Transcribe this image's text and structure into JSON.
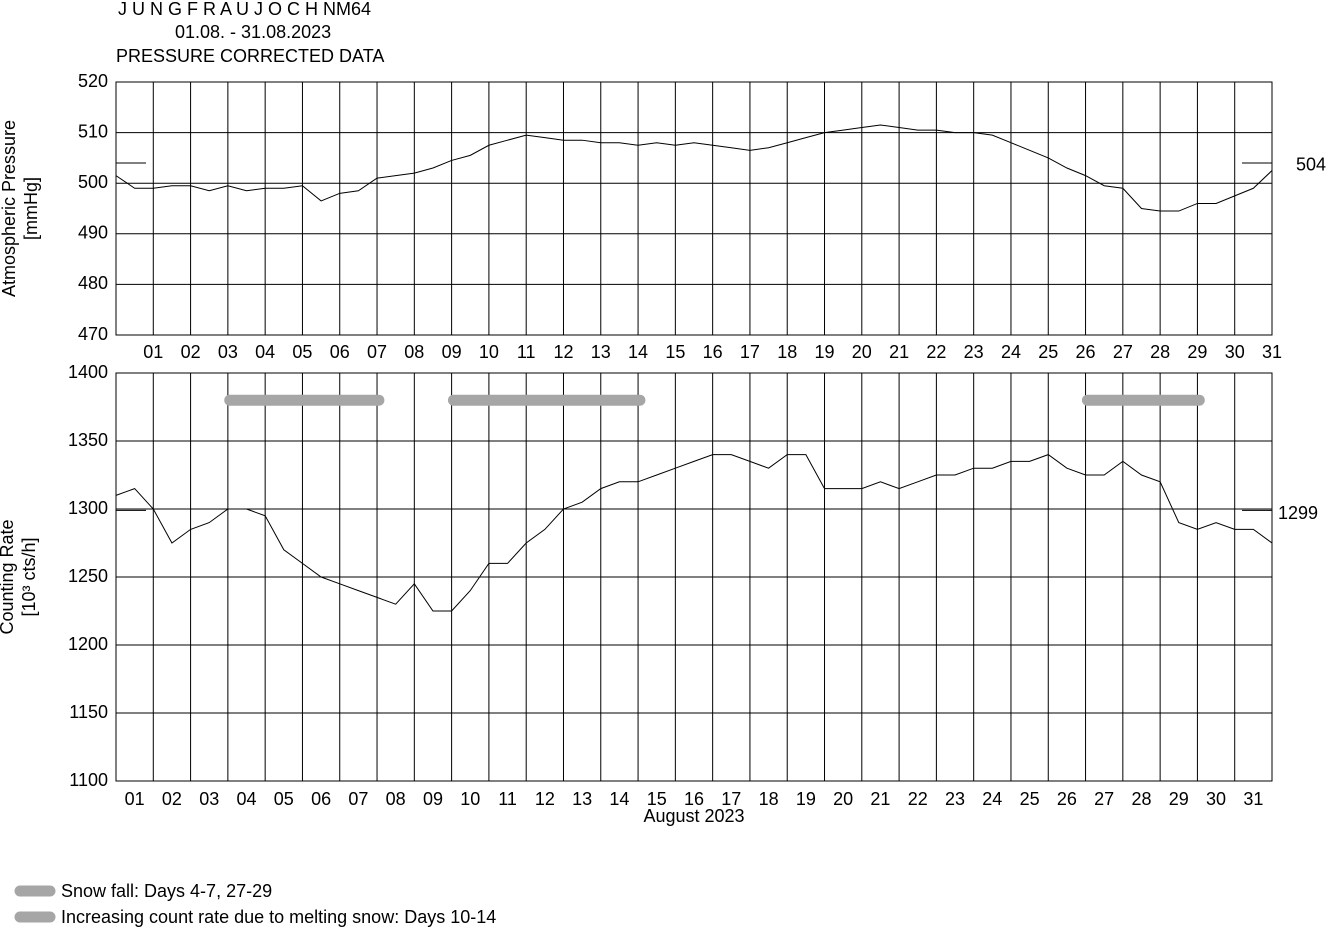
{
  "chart_data": [
    {
      "type": "line",
      "title": "J U N G F R A U J O C H  NM64",
      "subtitle": [
        "01.08. - 31.08.2023",
        "PRESSURE CORRECTED DATA"
      ],
      "ylabel": [
        "Atmospheric Pressure",
        "[mmHg]"
      ],
      "xlim": [
        0,
        31
      ],
      "ylim": [
        470,
        520
      ],
      "yticks": [
        470,
        480,
        490,
        500,
        510,
        520
      ],
      "xticks": [
        {
          "value": 1,
          "label": "01"
        },
        {
          "value": 2,
          "label": "02"
        },
        {
          "value": 3,
          "label": "03"
        },
        {
          "value": 4,
          "label": "04"
        },
        {
          "value": 5,
          "label": "05"
        },
        {
          "value": 6,
          "label": "06"
        },
        {
          "value": 7,
          "label": "07"
        },
        {
          "value": 8,
          "label": "08"
        },
        {
          "value": 9,
          "label": "09"
        },
        10,
        11,
        12,
        13,
        14,
        15,
        16,
        17,
        18,
        19,
        20,
        21,
        22,
        23,
        24,
        25,
        26,
        27,
        28,
        29,
        30,
        31
      ],
      "xgrid": [
        1,
        2,
        3,
        4,
        5,
        6,
        7,
        8,
        9,
        10,
        11,
        12,
        13,
        14,
        15,
        16,
        17,
        18,
        19,
        20,
        21,
        22,
        23,
        24,
        25,
        26,
        27,
        28,
        29,
        30
      ],
      "grid": true,
      "reference": 504,
      "series": [
        {
          "color": "#000000",
          "x": [
            0,
            0.5,
            1,
            1.5,
            2,
            2.5,
            3,
            3.5,
            4,
            4.5,
            5,
            5.5,
            6,
            6.5,
            7,
            7.5,
            8,
            8.5,
            9,
            9.5,
            10,
            10.5,
            11,
            11.5,
            12,
            12.5,
            13,
            13.5,
            14,
            14.5,
            15,
            15.5,
            16,
            16.5,
            17,
            17.5,
            18,
            18.5,
            19,
            19.5,
            20,
            20.5,
            21,
            21.5,
            22,
            22.5,
            23,
            23.5,
            24,
            24.5,
            25,
            25.5,
            26,
            26.5,
            27,
            27.5,
            28,
            28.5,
            29,
            29.5,
            30,
            30.5,
            31
          ],
          "values": [
            501.5,
            499,
            499,
            499.5,
            499.5,
            498.5,
            499.5,
            498.5,
            499,
            499,
            499.5,
            496.5,
            498,
            498.5,
            501,
            501.5,
            502,
            503,
            504.5,
            505.5,
            507.5,
            508.5,
            509.5,
            509,
            508.5,
            508.5,
            508,
            508,
            507.5,
            508,
            507.5,
            508,
            507.5,
            507,
            506.5,
            507,
            508,
            509,
            510,
            510.5,
            511,
            511.5,
            511,
            510.5,
            510.5,
            510,
            510,
            509.5,
            508,
            506.5,
            505,
            503,
            501.5,
            499.5,
            499,
            495,
            494.5,
            494.5,
            496,
            496,
            497.5,
            499,
            502.5
          ]
        }
      ]
    },
    {
      "type": "line",
      "ylabel": [
        "Counting Rate",
        "[10³ cts/h]"
      ],
      "xlabel": "August 2023",
      "xlim": [
        0,
        31
      ],
      "ylim": [
        1100,
        1400
      ],
      "yticks": [
        1100,
        1150,
        1200,
        1250,
        1300,
        1350,
        1400
      ],
      "xticks": [
        {
          "value": 0.5,
          "label": "01"
        },
        {
          "value": 1.5,
          "label": "02"
        },
        {
          "value": 2.5,
          "label": "03"
        },
        {
          "value": 3.5,
          "label": "04"
        },
        {
          "value": 4.5,
          "label": "05"
        },
        {
          "value": 5.5,
          "label": "06"
        },
        {
          "value": 6.5,
          "label": "07"
        },
        {
          "value": 7.5,
          "label": "08"
        },
        {
          "value": 8.5,
          "label": "09"
        },
        {
          "value": 9.5,
          "label": "10"
        },
        {
          "value": 10.5,
          "label": "11"
        },
        {
          "value": 11.5,
          "label": "12"
        },
        {
          "value": 12.5,
          "label": "13"
        },
        {
          "value": 13.5,
          "label": "14"
        },
        {
          "value": 14.5,
          "label": "15"
        },
        {
          "value": 15.5,
          "label": "16"
        },
        {
          "value": 16.5,
          "label": "17"
        },
        {
          "value": 17.5,
          "label": "18"
        },
        {
          "value": 18.5,
          "label": "19"
        },
        {
          "value": 19.5,
          "label": "20"
        },
        {
          "value": 20.5,
          "label": "21"
        },
        {
          "value": 21.5,
          "label": "22"
        },
        {
          "value": 22.5,
          "label": "23"
        },
        {
          "value": 23.5,
          "label": "24"
        },
        {
          "value": 24.5,
          "label": "25"
        },
        {
          "value": 25.5,
          "label": "26"
        },
        {
          "value": 26.5,
          "label": "27"
        },
        {
          "value": 27.5,
          "label": "28"
        },
        {
          "value": 28.5,
          "label": "29"
        },
        {
          "value": 29.5,
          "label": "30"
        },
        {
          "value": 30.5,
          "label": "31"
        }
      ],
      "xgrid": [
        1,
        2,
        3,
        4,
        5,
        6,
        7,
        8,
        9,
        10,
        11,
        12,
        13,
        14,
        15,
        16,
        17,
        18,
        19,
        20,
        21,
        22,
        23,
        24,
        25,
        26,
        27,
        28,
        29,
        30
      ],
      "grid": true,
      "reference": 1299,
      "bands": [
        {
          "start": 3.05,
          "end": 7.05,
          "value": 1380
        },
        {
          "start": 9.05,
          "end": 14.05,
          "value": 1380
        },
        {
          "start": 26.05,
          "end": 29.05,
          "value": 1380
        }
      ],
      "band_color": "#a6a6a6",
      "legend": [
        "Snow fall: Days 4-7, 27-29",
        "Increasing count rate due to melting snow: Days 10-14"
      ],
      "series": [
        {
          "color": "#000000",
          "x": [
            0,
            0.5,
            1,
            1.5,
            2,
            2.5,
            3,
            3.5,
            4,
            4.5,
            5,
            5.5,
            6,
            6.5,
            7,
            7.5,
            8,
            8.5,
            9,
            9.5,
            10,
            10.5,
            11,
            11.5,
            12,
            12.5,
            13,
            13.5,
            14,
            14.5,
            15,
            15.5,
            16,
            16.5,
            17,
            17.5,
            18,
            18.5,
            19,
            19.5,
            20,
            20.5,
            21,
            21.5,
            22,
            22.5,
            23,
            23.5,
            24,
            24.5,
            25,
            25.5,
            26,
            26.5,
            27,
            27.5,
            28,
            28.5,
            29,
            29.5,
            30,
            30.5,
            31
          ],
          "values": [
            1310,
            1315,
            1300,
            1275,
            1285,
            1290,
            1300,
            1300,
            1295,
            1270,
            1260,
            1250,
            1245,
            1240,
            1235,
            1230,
            1245,
            1225,
            1225,
            1240,
            1260,
            1260,
            1275,
            1285,
            1300,
            1305,
            1315,
            1320,
            1320,
            1325,
            1330,
            1335,
            1340,
            1340,
            1335,
            1330,
            1340,
            1340,
            1315,
            1315,
            1315,
            1320,
            1315,
            1320,
            1325,
            1325,
            1330,
            1330,
            1335,
            1335,
            1340,
            1330,
            1325,
            1325,
            1335,
            1325,
            1320,
            1290,
            1285,
            1290,
            1285,
            1285,
            1275
          ]
        }
      ]
    }
  ]
}
